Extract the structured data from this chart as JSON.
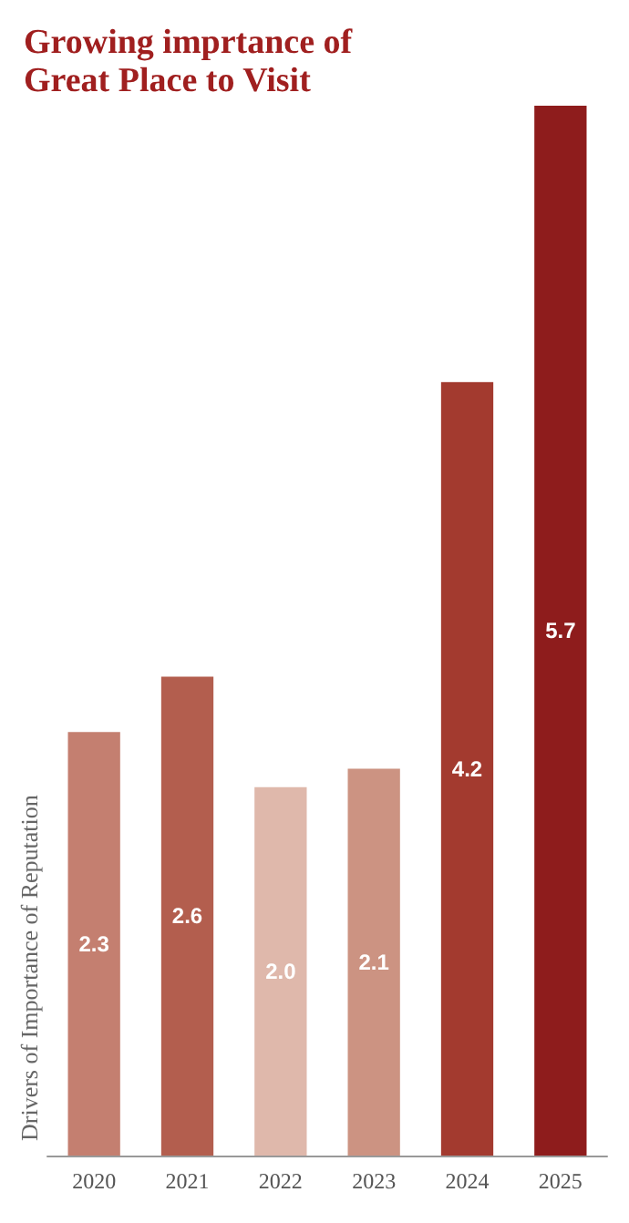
{
  "chart_data": {
    "type": "bar",
    "title": "Growing imprtance of Great Place to Visit",
    "ylabel": "Drivers of Importance of Reputation",
    "categories": [
      "2020",
      "2021",
      "2022",
      "2023",
      "2024",
      "2025"
    ],
    "values": [
      2.3,
      2.6,
      2.0,
      2.1,
      4.2,
      5.7
    ],
    "colors": [
      "#c47f70",
      "#b35e4e",
      "#dfb8ab",
      "#cc9382",
      "#a33a2f",
      "#8e1c1c"
    ],
    "value_labels": [
      "2.3",
      "2.6",
      "2.0",
      "2.1",
      "4.2",
      "5.7"
    ]
  }
}
